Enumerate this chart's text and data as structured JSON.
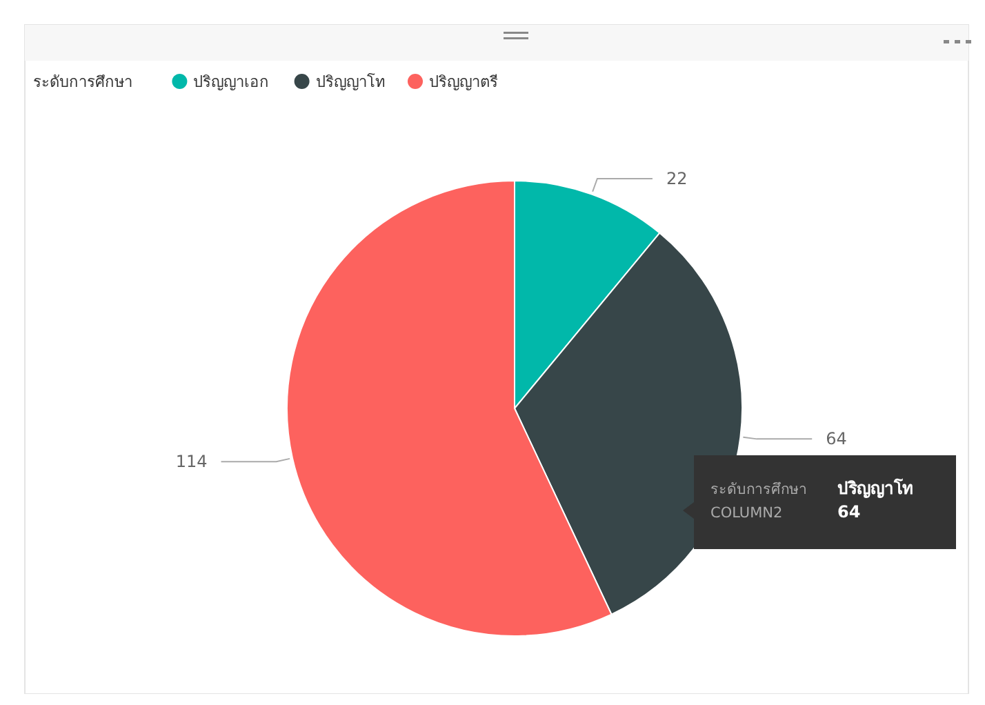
{
  "chart_data": {
    "type": "pie",
    "legend_title": "ระดับการศึกษา",
    "legend": "top left",
    "data_labels": true,
    "categories": [
      "ปริญญาเอก",
      "ปริญญาโท",
      "ปริญญาตรี"
    ],
    "values": [
      22,
      64,
      114
    ],
    "colors": [
      "#01b8aa",
      "#374649",
      "#fd625e"
    ],
    "annotations": [
      "ระดับการศึกษา",
      "ปริญญาโท",
      "COLUMN2",
      "64"
    ]
  }
}
